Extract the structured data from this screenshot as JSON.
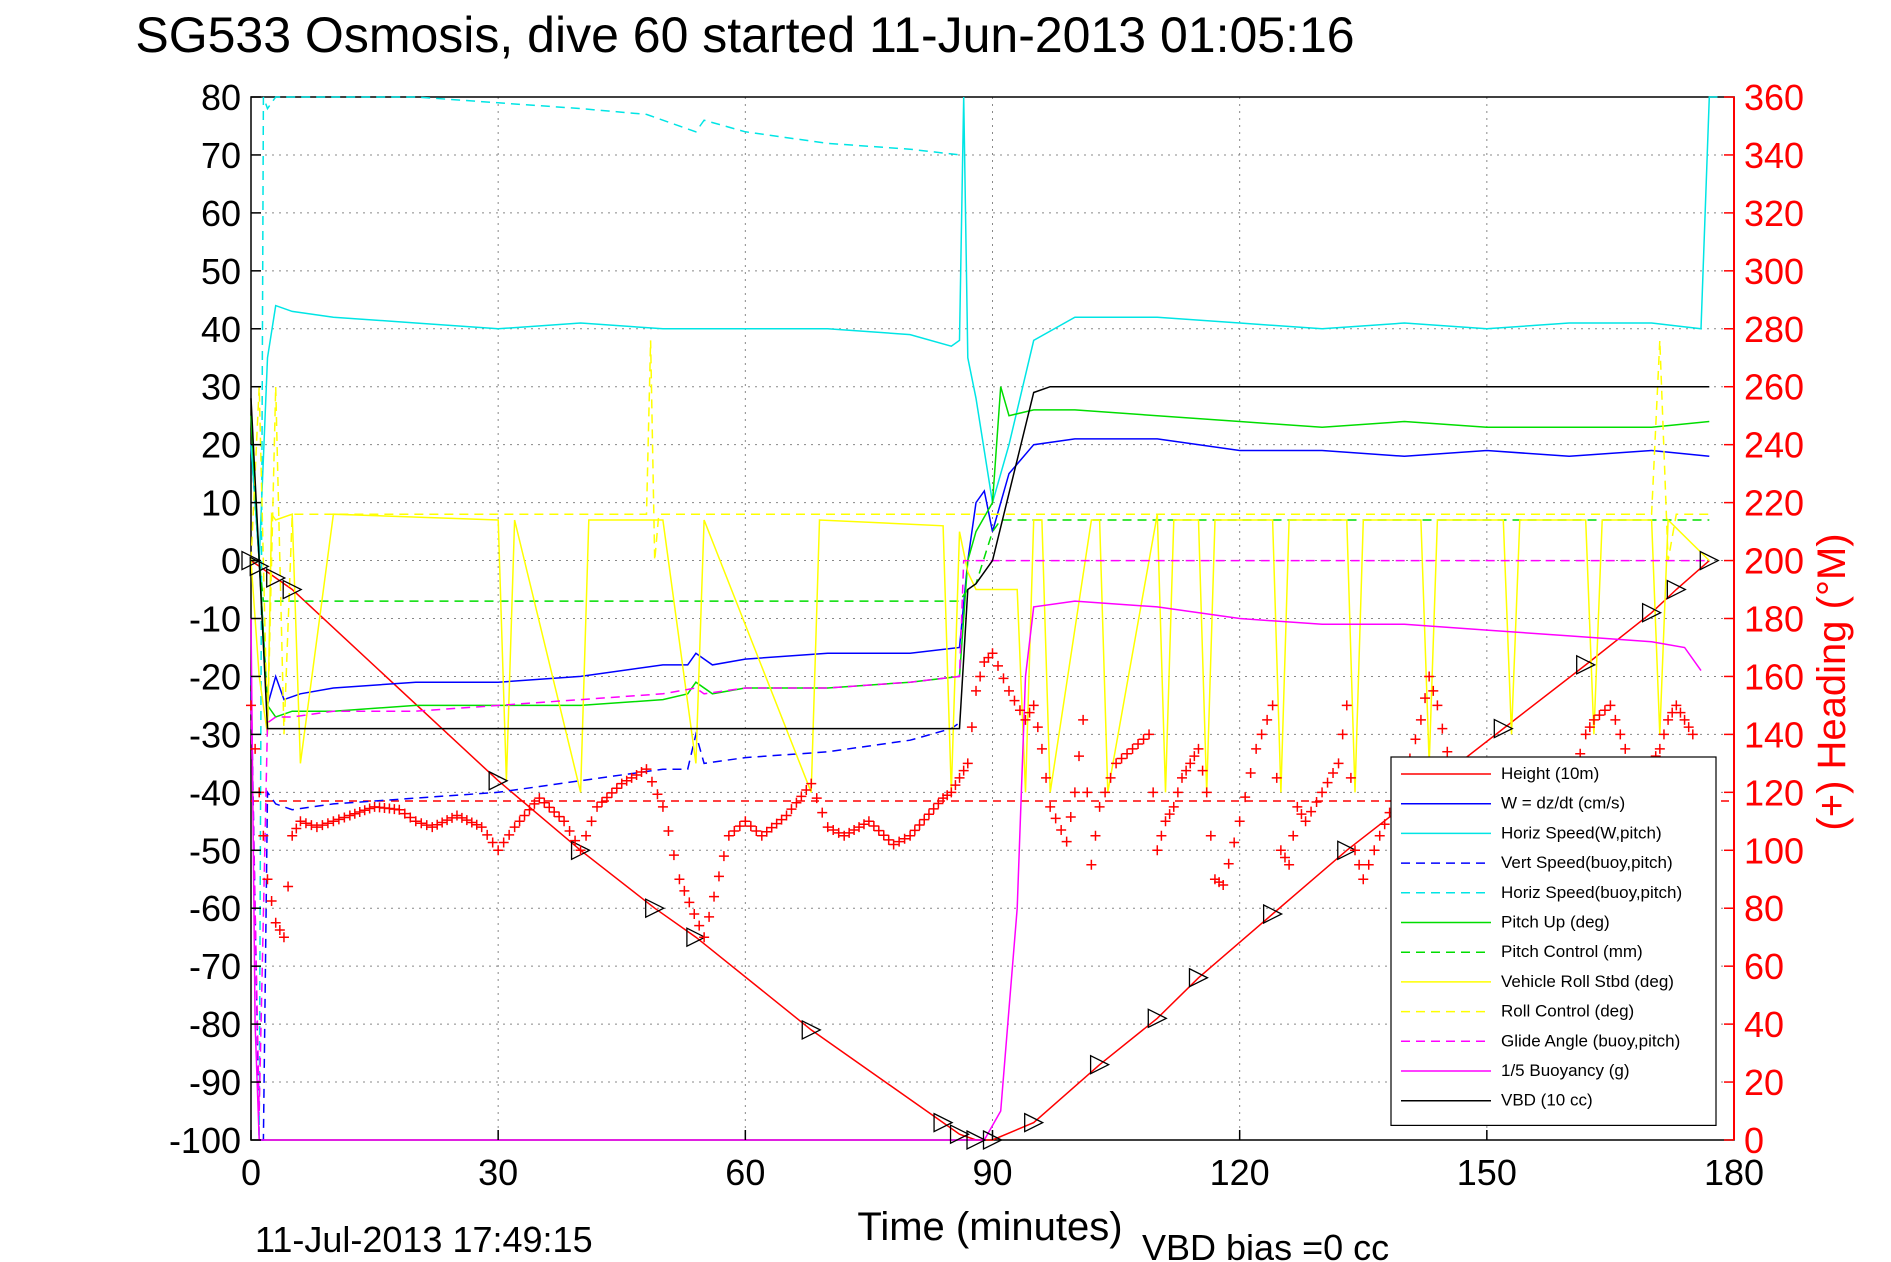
{
  "chart_data": {
    "type": "line",
    "title": "SG533 Osmosis, dive 60 started 11-Jun-2013 01:05:16",
    "xlabel": "Time (minutes)",
    "ylabel_right": "(+) Heading (°M)",
    "footer_left": "11-Jul-2013 17:49:15",
    "footer_right": "VBD bias =0 cc",
    "xlim": [
      0,
      180
    ],
    "ylim_left": [
      -100,
      80
    ],
    "ylim_right": [
      0,
      360
    ],
    "xticks": [
      "0",
      "30",
      "60",
      "90",
      "120",
      "150",
      "180"
    ],
    "yticks_left": [
      "80",
      "70",
      "60",
      "50",
      "40",
      "30",
      "20",
      "10",
      "0",
      "-10",
      "-20",
      "-30",
      "-40",
      "-50",
      "-60",
      "-70",
      "-80",
      "-90",
      "-100"
    ],
    "yticks_right": [
      "360",
      "340",
      "320",
      "300",
      "280",
      "260",
      "240",
      "220",
      "200",
      "180",
      "160",
      "140",
      "120",
      "100",
      "80",
      "60",
      "40",
      "20",
      "0"
    ],
    "grid": true,
    "legend_position": "bottom-right",
    "colors": {
      "height": "#ff0000",
      "w": "#0000ff",
      "horiz": "#00e5e5",
      "pitch": "#00dd00",
      "roll": "#ffff00",
      "glide": "#ff00ff",
      "buoyancy": "#ff00ff",
      "vbd": "#000000",
      "heading": "#ff0000",
      "heading_axis": "#ff0000"
    },
    "series": [
      {
        "name": "Height (10m)",
        "color": "#ff0000",
        "dash": "solid",
        "x": [
          0,
          1,
          3,
          5,
          30,
          40,
          49,
          54,
          68,
          84,
          86,
          88,
          90,
          95,
          103,
          110,
          115,
          124,
          133,
          152,
          162,
          170,
          173,
          177
        ],
        "y": [
          0,
          -1,
          -3,
          -5,
          -38,
          -50,
          -60,
          -65,
          -81,
          -97,
          -99,
          -100,
          -100,
          -97,
          -87,
          -79,
          -72,
          -61,
          -50,
          -29,
          -18,
          -9,
          -5,
          0
        ]
      },
      {
        "name": "W = dz/dt (cm/s)",
        "color": "#0000ff",
        "dash": "solid",
        "x": [
          0,
          1,
          2,
          3,
          4,
          6,
          10,
          20,
          30,
          40,
          50,
          53,
          54,
          56,
          60,
          70,
          80,
          86,
          87,
          88,
          89,
          90,
          92,
          95,
          100,
          110,
          120,
          130,
          140,
          150,
          160,
          170,
          177
        ],
        "y": [
          20,
          0,
          -25,
          -20,
          -24,
          -23,
          -22,
          -21,
          -21,
          -20,
          -18,
          -18,
          -16,
          -18,
          -17,
          -16,
          -16,
          -15,
          0,
          10,
          12,
          5,
          15,
          20,
          21,
          21,
          19,
          19,
          18,
          19,
          18,
          19,
          18
        ]
      },
      {
        "name": "Horiz Speed(W,pitch)",
        "color": "#00e5e5",
        "dash": "solid",
        "x": [
          0,
          1,
          2,
          3,
          5,
          10,
          20,
          30,
          40,
          50,
          60,
          70,
          80,
          85,
          86,
          86.5,
          87,
          88,
          90,
          92,
          95,
          100,
          110,
          120,
          130,
          140,
          150,
          160,
          170,
          176,
          177,
          178
        ],
        "y": [
          20,
          0,
          35,
          44,
          43,
          42,
          41,
          40,
          41,
          40,
          40,
          40,
          39,
          37,
          38,
          80,
          35,
          28,
          10,
          20,
          38,
          42,
          42,
          41,
          40,
          41,
          40,
          41,
          41,
          40,
          80,
          80
        ]
      },
      {
        "name": "Vert Speed(buoy,pitch)",
        "color": "#0000ff",
        "dash": "dashed",
        "x": [
          0,
          1,
          1.5,
          2,
          3,
          5,
          10,
          20,
          30,
          40,
          50,
          53,
          54,
          55,
          60,
          70,
          80,
          85,
          86
        ],
        "y": [
          -20,
          -100,
          -100,
          -40,
          -42,
          -43,
          -42,
          -41,
          -40,
          -38,
          -36,
          -36,
          -30,
          -35,
          -34,
          -33,
          -31,
          -29,
          -28
        ]
      },
      {
        "name": "Horiz Speed(buoy,pitch)",
        "color": "#00e5e5",
        "dash": "dashed",
        "x": [
          1,
          1.5,
          2,
          3,
          5,
          20,
          30,
          40,
          48,
          50,
          54,
          55,
          60,
          70,
          80,
          86
        ],
        "y": [
          -100,
          80,
          78,
          80,
          80,
          80,
          79,
          78,
          77,
          76,
          74,
          76,
          74,
          72,
          71,
          70
        ]
      },
      {
        "name": "Pitch Up (deg)",
        "color": "#00dd00",
        "dash": "solid",
        "x": [
          0,
          1,
          2,
          3,
          5,
          10,
          20,
          30,
          40,
          50,
          53,
          54,
          56,
          60,
          70,
          80,
          86,
          87,
          88,
          90,
          91,
          92,
          95,
          100,
          110,
          120,
          130,
          140,
          150,
          160,
          170,
          177
        ],
        "y": [
          25,
          0,
          -25,
          -27,
          -26,
          -26,
          -25,
          -25,
          -25,
          -24,
          -23,
          -21,
          -23,
          -22,
          -22,
          -21,
          -20,
          0,
          5,
          10,
          30,
          25,
          26,
          26,
          25,
          24,
          23,
          24,
          23,
          23,
          23,
          24
        ]
      },
      {
        "name": "Pitch Control (mm)",
        "color": "#00dd00",
        "dash": "dashed",
        "x": [
          0,
          1,
          1.5,
          2,
          86,
          87,
          88,
          90,
          91,
          177
        ],
        "y": [
          0,
          0,
          -7,
          -7,
          -7,
          -5,
          -4,
          5,
          7,
          7
        ]
      },
      {
        "name": "Vehicle Roll Stbd (deg)",
        "color": "#ffff00",
        "dash": "solid",
        "x": [
          0,
          1,
          2,
          2.5,
          3,
          5,
          6,
          10,
          30,
          31,
          32,
          40,
          41,
          50,
          54,
          55,
          68,
          69,
          84,
          85,
          86,
          87,
          88,
          90,
          93,
          94,
          95,
          96,
          97,
          102,
          103,
          104,
          110,
          111,
          112,
          115,
          116,
          117,
          124,
          125,
          126,
          133,
          134,
          135,
          142,
          143,
          144,
          152,
          153,
          154,
          162,
          163,
          164,
          170,
          171,
          172,
          177
        ],
        "y": [
          0,
          -20,
          -30,
          8,
          7,
          8,
          -35,
          8,
          7,
          -38,
          7,
          -40,
          7,
          7,
          -35,
          7,
          -40,
          7,
          6,
          -40,
          5,
          -2,
          -5,
          -5,
          -5,
          -40,
          7,
          7,
          -40,
          7,
          7,
          -40,
          8,
          -40,
          7,
          7,
          -40,
          7,
          7,
          -40,
          7,
          7,
          -40,
          7,
          7,
          -35,
          7,
          7,
          -30,
          7,
          7,
          -30,
          7,
          7,
          -30,
          7,
          0
        ]
      },
      {
        "name": "Roll Control (deg)",
        "color": "#ffff00",
        "dash": "dashed",
        "x": [
          0,
          1,
          2,
          3,
          4,
          5,
          48,
          48.5,
          49,
          49.5,
          170,
          171,
          172,
          173,
          177
        ],
        "y": [
          0,
          30,
          -30,
          30,
          -30,
          8,
          8,
          38,
          0,
          8,
          8,
          38,
          0,
          8,
          8
        ]
      },
      {
        "name": "Glide Angle (buoy,pitch)",
        "color": "#ff00ff",
        "dash": "dashed",
        "x": [
          0,
          1,
          2,
          3,
          5,
          10,
          20,
          30,
          40,
          50,
          54,
          55,
          60,
          70,
          80,
          86,
          86.5,
          87,
          88,
          177
        ],
        "y": [
          -25,
          -95,
          -28,
          -27,
          -27,
          -26,
          -26,
          -25,
          -24,
          -23,
          -22,
          -23,
          -22,
          -22,
          -21,
          -20,
          0,
          0,
          0,
          0
        ]
      },
      {
        "name": "1/5 Buoyancy (g)",
        "color": "#ff00ff",
        "dash": "solid",
        "x": [
          0,
          0.5,
          1,
          1.5,
          2,
          86,
          87,
          88,
          89,
          91,
          93,
          94,
          95,
          100,
          110,
          120,
          130,
          140,
          150,
          160,
          170,
          174,
          176
        ],
        "y": [
          -10,
          -80,
          -100,
          -100,
          -100,
          -100,
          -100,
          -100,
          -100,
          -95,
          -60,
          -20,
          -8,
          -7,
          -8,
          -10,
          -11,
          -11,
          -12,
          -13,
          -14,
          -15,
          -19
        ]
      },
      {
        "name": "VBD (10 cc)",
        "color": "#000000",
        "dash": "solid",
        "x": [
          0,
          1,
          2,
          86,
          87,
          88,
          90,
          95,
          97,
          177
        ],
        "y": [
          28,
          0,
          -29,
          -29,
          -5,
          -4,
          0,
          29,
          30,
          30
        ]
      }
    ],
    "heading_series": {
      "name": "Heading (+)",
      "color": "#ff0000",
      "axis": "right",
      "reference_line": 117,
      "x": [
        0,
        1,
        2,
        3,
        4,
        5,
        6,
        8,
        10,
        12,
        15,
        18,
        20,
        22,
        25,
        28,
        30,
        32,
        35,
        38,
        40,
        42,
        45,
        48,
        50,
        52,
        55,
        58,
        60,
        62,
        65,
        68,
        70,
        72,
        75,
        78,
        80,
        84,
        85,
        86,
        87,
        88,
        89,
        90,
        92,
        94,
        95,
        96,
        97,
        99,
        100,
        101,
        102,
        103,
        105,
        107,
        109,
        110,
        111,
        112,
        113,
        114,
        115,
        116,
        117,
        118,
        120,
        122,
        124,
        125,
        126,
        127,
        128,
        130,
        132,
        133,
        134,
        135,
        137,
        140,
        142,
        143,
        144,
        147,
        150,
        152,
        153,
        155,
        157,
        160,
        162,
        163,
        165,
        168,
        170,
        171,
        172,
        173,
        174,
        175
      ],
      "y": [
        150,
        120,
        90,
        75,
        70,
        105,
        110,
        108,
        110,
        112,
        115,
        114,
        110,
        108,
        112,
        108,
        100,
        108,
        118,
        110,
        100,
        115,
        123,
        128,
        115,
        90,
        70,
        105,
        110,
        105,
        112,
        123,
        108,
        105,
        110,
        102,
        105,
        118,
        120,
        125,
        130,
        155,
        165,
        168,
        155,
        145,
        150,
        135,
        115,
        103,
        120,
        145,
        95,
        115,
        130,
        135,
        140,
        100,
        110,
        115,
        125,
        130,
        135,
        120,
        90,
        88,
        110,
        135,
        150,
        100,
        95,
        115,
        110,
        120,
        130,
        150,
        100,
        90,
        105,
        125,
        145,
        160,
        150,
        110,
        90,
        105,
        115,
        125,
        130,
        120,
        140,
        145,
        150,
        125,
        130,
        135,
        145,
        150,
        145,
        140
      ]
    }
  }
}
